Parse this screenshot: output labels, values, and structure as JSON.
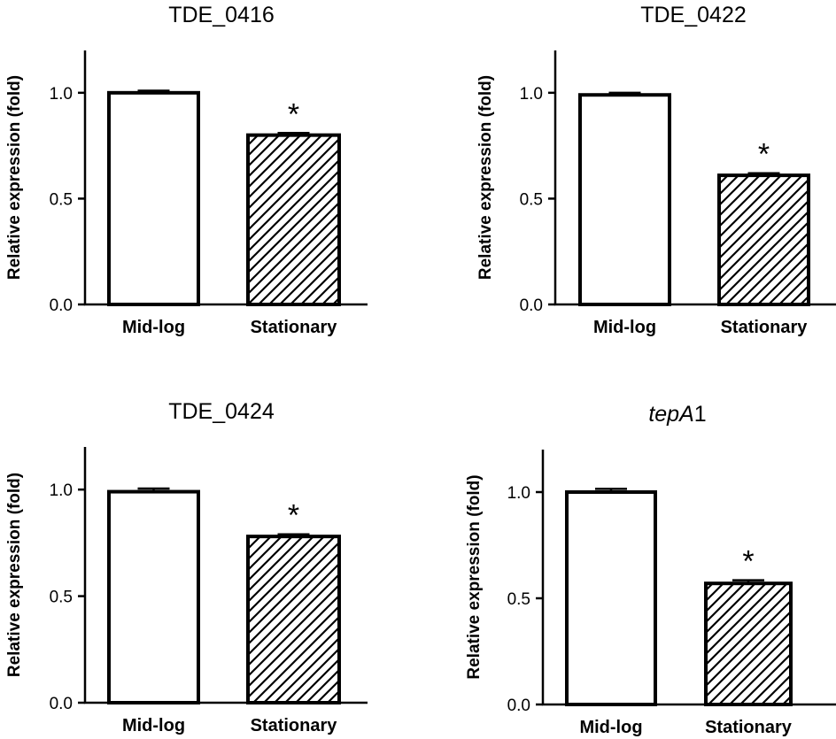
{
  "chart_data": [
    {
      "type": "bar",
      "title": "TDE_0416",
      "title_italic_part": "",
      "ylabel": "Relative expression (fold)",
      "ylim": [
        0,
        1.2
      ],
      "yticks": [
        "0.0",
        "0.5",
        "1.0"
      ],
      "categories": [
        "Mid-log",
        "Stationary"
      ],
      "values": [
        1.0,
        0.8
      ],
      "errors": [
        0.01,
        0.01
      ],
      "patterns": [
        "solid",
        "hatched"
      ],
      "annotations": [
        "",
        "*"
      ]
    },
    {
      "type": "bar",
      "title": "TDE_0422",
      "title_italic_part": "",
      "ylabel": "Relative expression (fold)",
      "ylim": [
        0,
        1.2
      ],
      "yticks": [
        "0.0",
        "0.5",
        "1.0"
      ],
      "categories": [
        "Mid-log",
        "Stationary"
      ],
      "values": [
        0.99,
        0.61
      ],
      "errors": [
        0.01,
        0.01
      ],
      "patterns": [
        "solid",
        "hatched"
      ],
      "annotations": [
        "",
        "*"
      ]
    },
    {
      "type": "bar",
      "title": "TDE_0424",
      "title_italic_part": "",
      "ylabel": "Relative expression (fold)",
      "ylim": [
        0,
        1.2
      ],
      "yticks": [
        "0.0",
        "0.5",
        "1.0"
      ],
      "categories": [
        "Mid-log",
        "Stationary"
      ],
      "values": [
        0.99,
        0.78
      ],
      "errors": [
        0.015,
        0.01
      ],
      "patterns": [
        "solid",
        "hatched"
      ],
      "annotations": [
        "",
        "*"
      ]
    },
    {
      "type": "bar",
      "title": "1",
      "title_italic_part": "tepA",
      "ylabel": "Relative expression (fold)",
      "ylim": [
        0,
        1.2
      ],
      "yticks": [
        "0.0",
        "0.5",
        "1.0"
      ],
      "categories": [
        "Mid-log",
        "Stationary"
      ],
      "values": [
        1.0,
        0.57
      ],
      "errors": [
        0.015,
        0.015
      ],
      "patterns": [
        "solid",
        "hatched"
      ],
      "annotations": [
        "",
        "*"
      ]
    }
  ]
}
